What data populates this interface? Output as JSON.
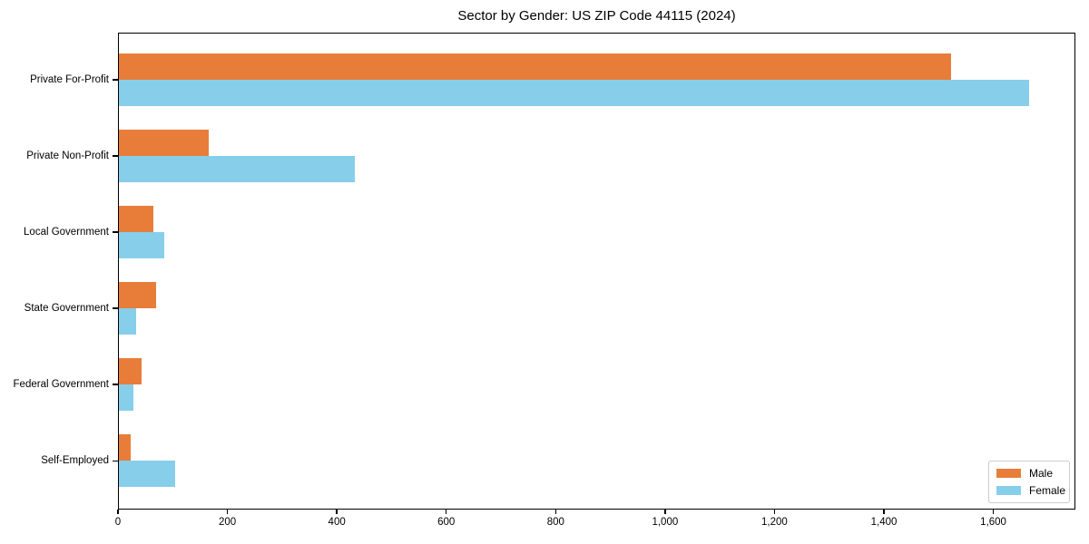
{
  "chart_data": {
    "type": "bar",
    "orientation": "horizontal",
    "title": "Sector by Gender: US ZIP Code 44115 (2024)",
    "categories": [
      "Private For-Profit",
      "Private Non-Profit",
      "Local Government",
      "State Government",
      "Federal Government",
      "Self-Employed"
    ],
    "series": [
      {
        "name": "Male",
        "color": "#e87d3a",
        "values": [
          1522,
          166,
          65,
          69,
          43,
          24
        ]
      },
      {
        "name": "Female",
        "color": "#87ceeb",
        "values": [
          1666,
          433,
          84,
          34,
          28,
          104
        ]
      }
    ],
    "xlabel": "",
    "ylabel": "",
    "xlim": [
      0,
      1750
    ],
    "x_tick_values": [
      0,
      200,
      400,
      600,
      800,
      1000,
      1200,
      1400,
      1600
    ],
    "x_tick_labels": [
      "0",
      "200",
      "400",
      "600",
      "800",
      "1,000",
      "1,200",
      "1,400",
      "1,600"
    ],
    "grid": false,
    "legend_position": "lower right"
  }
}
